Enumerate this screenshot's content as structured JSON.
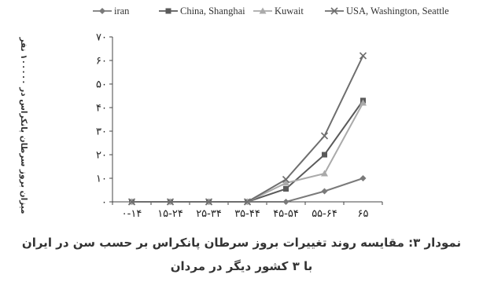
{
  "chart_data": {
    "type": "line",
    "ylabel": "میزان بروز سرطان پانکراس در ۱۰۰۰۰۰ نفر",
    "categories": [
      "۰-۱۴",
      "۱۵-۲۴",
      "۲۵-۳۴",
      "۳۵-۴۴",
      "۴۵-۵۴",
      "۵۵-۶۴",
      "۶۵"
    ],
    "y_ticks": [
      "۰",
      "۱۰",
      "۲۰",
      "۳۰",
      "۴۰",
      "۵۰",
      "۶۰",
      "۷۰"
    ],
    "ylim": [
      0,
      70
    ],
    "legend_position": "top",
    "series": [
      {
        "name": "iran",
        "marker": "diamond",
        "color": "#7a7a7a",
        "values": [
          0,
          0,
          0,
          0,
          0,
          4.5,
          10
        ]
      },
      {
        "name": "China, Shanghai",
        "marker": "square",
        "color": "#5a5a5a",
        "values": [
          0,
          0,
          0,
          0,
          5.5,
          20,
          43
        ]
      },
      {
        "name": "Kuwait",
        "marker": "triangle",
        "color": "#aaaaaa",
        "values": [
          0,
          0,
          0,
          0,
          8,
          12,
          42
        ]
      },
      {
        "name": "USA, Washington, Seattle",
        "marker": "x",
        "color": "#6e6e6e",
        "values": [
          0,
          0,
          0,
          0,
          9.5,
          28,
          62
        ]
      }
    ]
  },
  "caption": {
    "line1": "نمودار ۳: مقایسه روند تغییرات بروز سرطان پانکراس بر حسب سن در ایران",
    "line2": "با ۳ کشور دیگر در مردان"
  }
}
